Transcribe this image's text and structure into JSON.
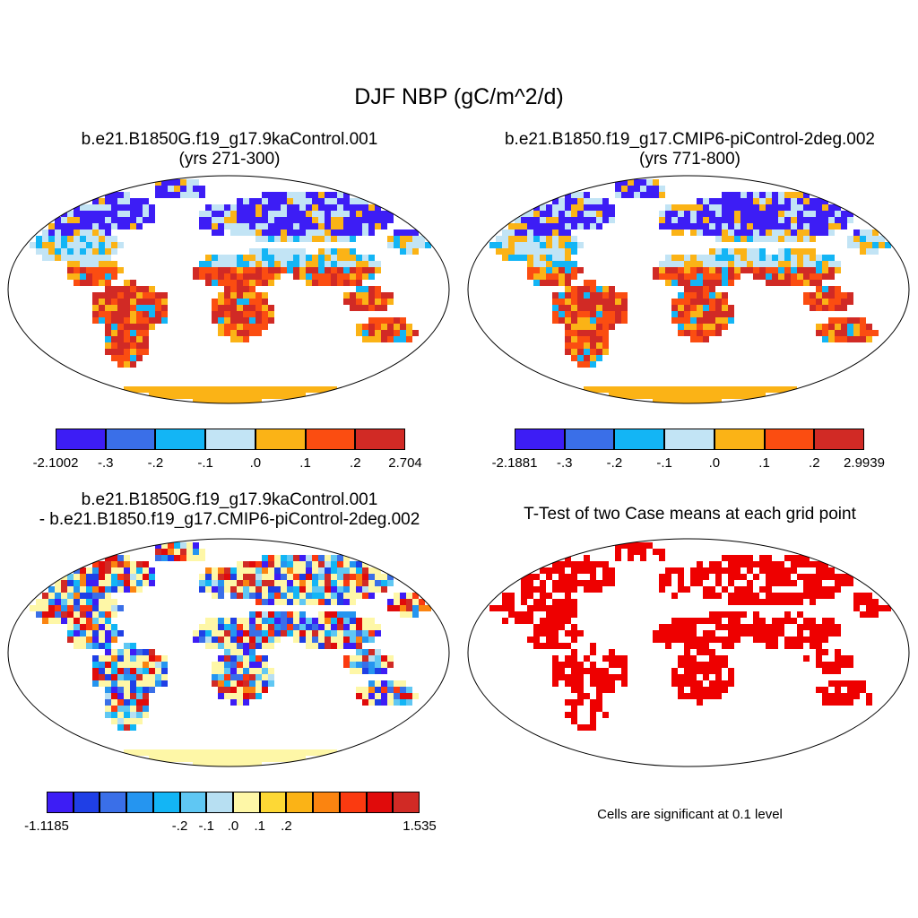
{
  "figure": {
    "title": "DJF NBP (gC/m^2/d)"
  },
  "panels": {
    "case1": {
      "title_line1": "b.e21.B1850G.f19_g17.9kaControl.001",
      "title_line2": "(yrs 271-300)",
      "colorbar": {
        "colors": [
          "#3d1df5",
          "#3a6fe8",
          "#13b5f5",
          "#c2e4f5",
          "#fbb316",
          "#fb4d11",
          "#d12a25"
        ],
        "labels": [
          "-2.1002",
          "-.3",
          "-.2",
          "-.1",
          ".0",
          ".1",
          ".2",
          "2.704"
        ]
      }
    },
    "case2": {
      "title_line1": "b.e21.B1850.f19_g17.CMIP6-piControl-2deg.002",
      "title_line2": "(yrs 771-800)",
      "colorbar": {
        "colors": [
          "#3d1df5",
          "#3a6fe8",
          "#13b5f5",
          "#c2e4f5",
          "#fbb316",
          "#fb4d11",
          "#d12a25"
        ],
        "labels": [
          "-2.1881",
          "-.3",
          "-.2",
          "-.1",
          ".0",
          ".1",
          ".2",
          "2.9939"
        ]
      }
    },
    "diff": {
      "title_line1": "b.e21.B1850G.f19_g17.9kaControl.001",
      "title_line2": "- b.e21.B1850.f19_g17.CMIP6-piControl-2deg.002",
      "colorbar": {
        "colors": [
          "#3d1df5",
          "#1f3fe6",
          "#3a6fe8",
          "#2595f0",
          "#13b5f5",
          "#5fc7f3",
          "#b7dff2",
          "#fef7a7",
          "#fdd835",
          "#fbb316",
          "#fb8410",
          "#fb3a10",
          "#e00b0b",
          "#d12a25"
        ],
        "labels": [
          "-1.1185",
          "-.2",
          "-.1",
          ".0",
          ".1",
          ".2",
          "1.535"
        ]
      }
    },
    "ttest": {
      "title": "T-Test of two Case means at each grid point",
      "note": "Cells are significant at 0.1 level",
      "sig_color": "#ee0000"
    }
  }
}
